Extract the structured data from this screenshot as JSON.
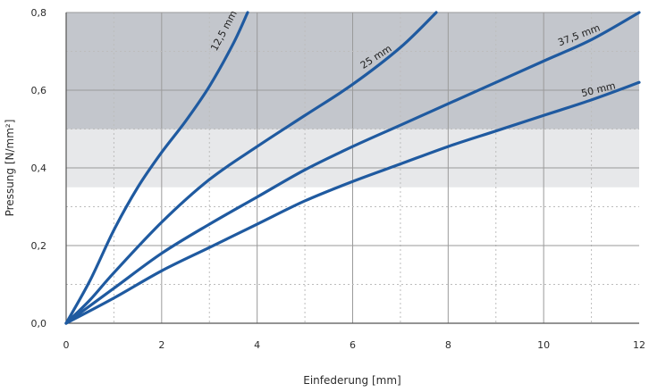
{
  "chart_data": {
    "type": "line",
    "title": "",
    "xlabel": "Einfederung [mm]",
    "ylabel": "Pressung [N/mm²]",
    "xlim": [
      0,
      12
    ],
    "ylim": [
      0,
      0.8
    ],
    "x_ticks": [
      "0",
      "2",
      "4",
      "6",
      "8",
      "10",
      "12"
    ],
    "y_ticks": [
      "0,0",
      "0,2",
      "0,4",
      "0,6",
      "0,8"
    ],
    "grid": true,
    "shaded_bands": [
      {
        "y_from": 0.5,
        "y_to": 0.8,
        "color": "#c3c6cc"
      },
      {
        "y_from": 0.35,
        "y_to": 0.5,
        "color": "#e7e8ea"
      }
    ],
    "line_color": "#1f5aa0",
    "series": [
      {
        "name": "12,5 mm",
        "points": [
          [
            0,
            0
          ],
          [
            0.5,
            0.11
          ],
          [
            1,
            0.24
          ],
          [
            1.5,
            0.35
          ],
          [
            2,
            0.44
          ],
          [
            2.5,
            0.52
          ],
          [
            3,
            0.61
          ],
          [
            3.5,
            0.72
          ],
          [
            3.8,
            0.8
          ]
        ]
      },
      {
        "name": "25 mm",
        "points": [
          [
            0,
            0
          ],
          [
            0.5,
            0.06
          ],
          [
            1,
            0.13
          ],
          [
            2,
            0.26
          ],
          [
            3,
            0.37
          ],
          [
            4,
            0.455
          ],
          [
            5,
            0.535
          ],
          [
            6,
            0.615
          ],
          [
            7,
            0.71
          ],
          [
            7.75,
            0.8
          ]
        ]
      },
      {
        "name": "37,5 mm",
        "points": [
          [
            0,
            0
          ],
          [
            1,
            0.09
          ],
          [
            2,
            0.18
          ],
          [
            3,
            0.255
          ],
          [
            4,
            0.325
          ],
          [
            5,
            0.395
          ],
          [
            6,
            0.455
          ],
          [
            7,
            0.51
          ],
          [
            8,
            0.565
          ],
          [
            9,
            0.62
          ],
          [
            10,
            0.675
          ],
          [
            11,
            0.73
          ],
          [
            12,
            0.8
          ]
        ]
      },
      {
        "name": "50 mm",
        "points": [
          [
            0,
            0
          ],
          [
            1,
            0.065
          ],
          [
            2,
            0.135
          ],
          [
            3,
            0.195
          ],
          [
            4,
            0.255
          ],
          [
            5,
            0.315
          ],
          [
            6,
            0.365
          ],
          [
            7,
            0.41
          ],
          [
            8,
            0.455
          ],
          [
            9,
            0.495
          ],
          [
            10,
            0.535
          ],
          [
            11,
            0.575
          ],
          [
            12,
            0.62
          ]
        ]
      }
    ]
  }
}
